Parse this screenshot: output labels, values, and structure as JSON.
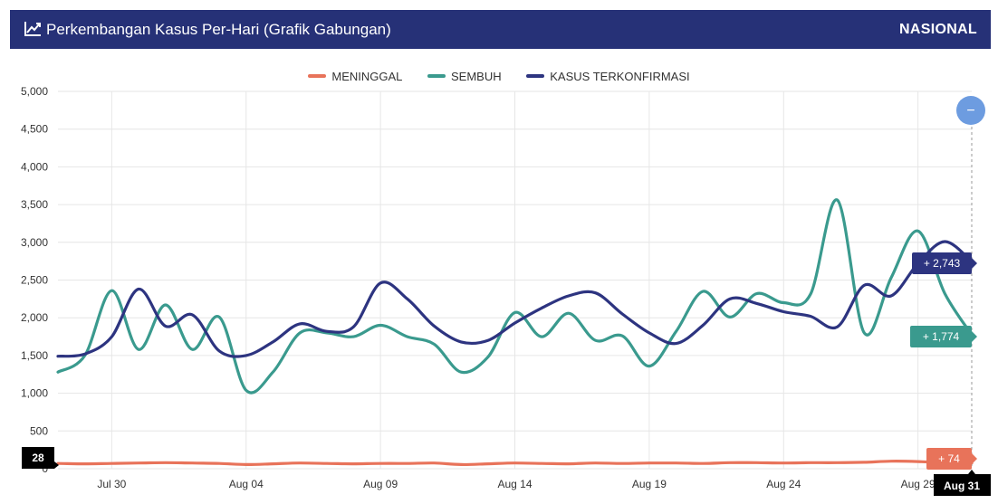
{
  "header": {
    "title": "Perkembangan Kasus Per-Hari (Grafik Gabungan)",
    "scope": "NASIONAL",
    "icon": "line-chart-icon"
  },
  "colors": {
    "header_bg": "#263177",
    "meninggal": "#E8735A",
    "sembuh": "#3A9A8E",
    "kasus": "#2D3480",
    "zoom_button": "#6D9CE0"
  },
  "chart_data": {
    "type": "line",
    "ylim": [
      0,
      5000
    ],
    "y_ticks": [
      "5,000",
      "4,500",
      "4,000",
      "3,500",
      "3,000",
      "2,500",
      "2,000",
      "1,500",
      "1,000",
      "500",
      "0"
    ],
    "y_tick_values": [
      5000,
      4500,
      4000,
      3500,
      3000,
      2500,
      2000,
      1500,
      1000,
      500,
      0
    ],
    "x": [
      "Jul 28",
      "Jul 29",
      "Jul 30",
      "Jul 31",
      "Aug 01",
      "Aug 02",
      "Aug 03",
      "Aug 04",
      "Aug 05",
      "Aug 06",
      "Aug 07",
      "Aug 08",
      "Aug 09",
      "Aug 10",
      "Aug 11",
      "Aug 12",
      "Aug 13",
      "Aug 14",
      "Aug 15",
      "Aug 16",
      "Aug 17",
      "Aug 18",
      "Aug 19",
      "Aug 20",
      "Aug 21",
      "Aug 22",
      "Aug 23",
      "Aug 24",
      "Aug 25",
      "Aug 26",
      "Aug 27",
      "Aug 28",
      "Aug 29",
      "Aug 30",
      "Aug 31"
    ],
    "x_tick_labels": [
      {
        "index": 2,
        "label": "Jul 30"
      },
      {
        "index": 7,
        "label": "Aug 04"
      },
      {
        "index": 12,
        "label": "Aug 09"
      },
      {
        "index": 17,
        "label": "Aug 14"
      },
      {
        "index": 22,
        "label": "Aug 19"
      },
      {
        "index": 27,
        "label": "Aug 24"
      },
      {
        "index": 32,
        "label": "Aug 29"
      }
    ],
    "grid": true,
    "legend_position": "top-center",
    "series": [
      {
        "name": "MENINGGAL",
        "key": "meninggal",
        "values": [
          70,
          65,
          70,
          75,
          80,
          75,
          70,
          55,
          65,
          75,
          70,
          65,
          70,
          70,
          75,
          55,
          65,
          75,
          70,
          65,
          75,
          70,
          75,
          75,
          70,
          80,
          80,
          75,
          80,
          80,
          85,
          100,
          95,
          80,
          74
        ]
      },
      {
        "name": "SEMBUH",
        "key": "sembuh",
        "values": [
          1280,
          1500,
          2360,
          1580,
          2170,
          1580,
          2010,
          1040,
          1280,
          1800,
          1800,
          1750,
          1900,
          1750,
          1650,
          1280,
          1480,
          2070,
          1750,
          2060,
          1700,
          1760,
          1360,
          1820,
          2350,
          2010,
          2320,
          2200,
          2310,
          3560,
          1800,
          2530,
          3150,
          2320,
          1774
        ]
      },
      {
        "name": "KASUS TERKONFIRMASI",
        "key": "kasus",
        "values": [
          1490,
          1520,
          1750,
          2380,
          1890,
          2040,
          1560,
          1500,
          1680,
          1920,
          1820,
          1880,
          2460,
          2250,
          1890,
          1680,
          1700,
          1930,
          2130,
          2290,
          2330,
          2050,
          1800,
          1660,
          1900,
          2250,
          2190,
          2080,
          2020,
          1880,
          2430,
          2290,
          2720,
          3010,
          2743
        ]
      }
    ],
    "tooltips": {
      "kasus": "+ 2,743",
      "sembuh": "+ 1,774",
      "meninggal": "+ 74",
      "x_value": "Aug 31",
      "y_value": "28"
    }
  },
  "zoom_button_symbol": "−"
}
